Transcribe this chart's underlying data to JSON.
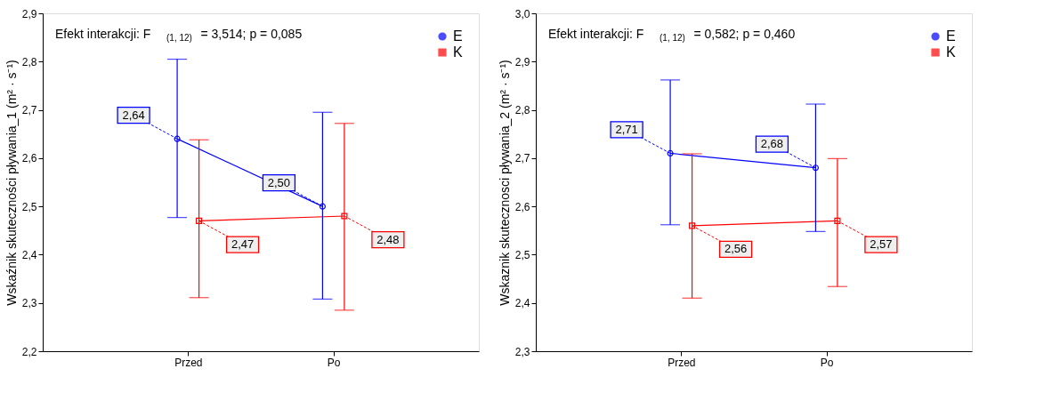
{
  "chart_data": [
    {
      "type": "line",
      "categories": [
        "Przed",
        "Po"
      ],
      "ylabel": "Wskaźnik skuteczności pływania_1 (m² · s⁻¹)",
      "ylim": [
        2.2,
        2.9
      ],
      "yticks": [
        {
          "value": 2.2,
          "label": "2,2"
        },
        {
          "value": 2.3,
          "label": "2,3"
        },
        {
          "value": 2.4,
          "label": "2,4"
        },
        {
          "value": 2.5,
          "label": "2,5"
        },
        {
          "value": 2.6,
          "label": "2,6"
        },
        {
          "value": 2.7,
          "label": "2,7"
        },
        {
          "value": 2.8,
          "label": "2,8"
        },
        {
          "value": 2.9,
          "label": "2,9"
        }
      ],
      "annotations": [
        "Efekt interakcji: F$_{(1, 12)}$ = 3,514; p = 0,085"
      ],
      "legend": "top right",
      "grid": false,
      "data_labels": true,
      "series": [
        {
          "name": "E",
          "color": "#0000ff",
          "marker": "circle",
          "values": [
            2.64,
            2.5
          ],
          "value_labels": [
            "2,64",
            "2,50"
          ],
          "errors": [
            [
              2.477,
              2.805
            ],
            [
              2.308,
              2.695
            ]
          ]
        },
        {
          "name": "K",
          "color": "#ff0000",
          "marker": "square",
          "values": [
            2.47,
            2.48
          ],
          "value_labels": [
            "2,47",
            "2,48"
          ],
          "errors": [
            [
              2.311,
              2.638
            ],
            [
              2.285,
              2.672
            ]
          ]
        }
      ]
    },
    {
      "type": "line",
      "categories": [
        "Przed",
        "Po"
      ],
      "ylabel": "Wskaznik skutecznosci pływania_2 (m² · s⁻¹)",
      "ylim": [
        2.3,
        3.0
      ],
      "yticks": [
        {
          "value": 2.3,
          "label": "2,3"
        },
        {
          "value": 2.4,
          "label": "2,4"
        },
        {
          "value": 2.5,
          "label": "2,5"
        },
        {
          "value": 2.6,
          "label": "2,6"
        },
        {
          "value": 2.7,
          "label": "2,7"
        },
        {
          "value": 2.8,
          "label": "2,8"
        },
        {
          "value": 2.9,
          "label": "2,9"
        },
        {
          "value": 3.0,
          "label": "3,0"
        }
      ],
      "annotations": [
        "Efekt interakcji: F$_{(1, 12)}$ = 0,582; p = 0,460"
      ],
      "legend": "top right",
      "grid": false,
      "data_labels": true,
      "series": [
        {
          "name": "E",
          "color": "#0000ff",
          "marker": "circle",
          "values": [
            2.71,
            2.68
          ],
          "value_labels": [
            "2,71",
            "2,68"
          ],
          "errors": [
            [
              2.562,
              2.862
            ],
            [
              2.548,
              2.812
            ]
          ]
        },
        {
          "name": "K",
          "color": "#ff0000",
          "marker": "square",
          "values": [
            2.56,
            2.57
          ],
          "value_labels": [
            "2,56",
            "2,57"
          ],
          "errors": [
            [
              2.41,
              2.709
            ],
            [
              2.434,
              2.699
            ]
          ]
        }
      ]
    }
  ]
}
